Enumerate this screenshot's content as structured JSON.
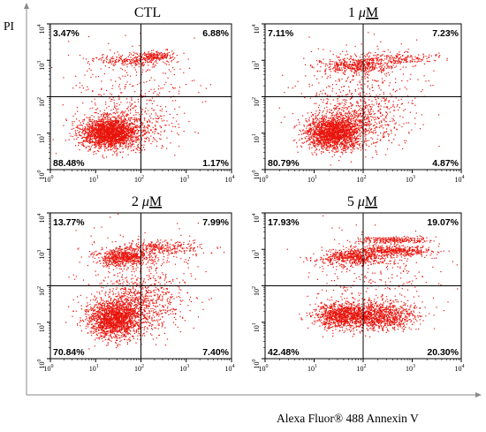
{
  "figure": {
    "y_axis_label": "PI",
    "x_axis_label": "Alexa Fluor® 488 Annexin V",
    "dot_color": "#e8140c"
  },
  "chart_data": [
    {
      "type": "scatter",
      "title": "CTL",
      "x_ticks": [
        "10",
        "10",
        "10",
        "10",
        "10"
      ],
      "x_tick_exp": [
        "0",
        "1",
        "2",
        "3",
        "4"
      ],
      "y_ticks": [
        "10",
        "10",
        "10",
        "10",
        "10"
      ],
      "y_tick_exp": [
        "0",
        "1",
        "2",
        "3",
        "4"
      ],
      "xlim": [
        1,
        10000
      ],
      "ylim": [
        1,
        10000
      ],
      "scale": "log",
      "quadrant_gate": {
        "x": 100,
        "y": 100
      },
      "quadrants": {
        "upper_left": "3.47%",
        "upper_right": "6.88%",
        "lower_left": "88.48%",
        "lower_right": "1.17%"
      },
      "clusters": [
        {
          "center": [
            20,
            10
          ],
          "spread": [
            0.3,
            0.2
          ],
          "count": 2100
        },
        {
          "center": [
            60,
            15
          ],
          "spread": [
            0.45,
            0.35
          ],
          "count": 500
        },
        {
          "center": [
            60,
            1000
          ],
          "spread": [
            0.4,
            0.08
          ],
          "count": 240
        },
        {
          "center": [
            200,
            1300
          ],
          "spread": [
            0.2,
            0.06
          ],
          "count": 160
        },
        {
          "center": [
            60,
            200
          ],
          "spread": [
            0.7,
            0.6
          ],
          "count": 260
        }
      ]
    },
    {
      "type": "scatter",
      "title": "1",
      "title_unit": "uM",
      "x_ticks": [
        "10",
        "10",
        "10",
        "10",
        "10"
      ],
      "x_tick_exp": [
        "0",
        "1",
        "2",
        "3",
        "4"
      ],
      "y_ticks": [
        "10",
        "10",
        "10",
        "10",
        "10"
      ],
      "y_tick_exp": [
        "0",
        "1",
        "2",
        "3",
        "4"
      ],
      "xlim": [
        1,
        10000
      ],
      "ylim": [
        1,
        10000
      ],
      "scale": "log",
      "quadrant_gate": {
        "x": 100,
        "y": 100
      },
      "quadrants": {
        "upper_left": "7.11%",
        "upper_right": "7.23%",
        "lower_left": "80.79%",
        "lower_right": "4.87%"
      },
      "clusters": [
        {
          "center": [
            25,
            10
          ],
          "spread": [
            0.28,
            0.22
          ],
          "count": 1900
        },
        {
          "center": [
            80,
            25
          ],
          "spread": [
            0.45,
            0.4
          ],
          "count": 650
        },
        {
          "center": [
            70,
            700
          ],
          "spread": [
            0.35,
            0.1
          ],
          "count": 420
        },
        {
          "center": [
            400,
            1100
          ],
          "spread": [
            0.45,
            0.08
          ],
          "count": 220
        },
        {
          "center": [
            100,
            200
          ],
          "spread": [
            0.7,
            0.6
          ],
          "count": 300
        }
      ]
    },
    {
      "type": "scatter",
      "title": "2",
      "title_unit": "uM",
      "x_ticks": [
        "10",
        "10",
        "10",
        "10",
        "10"
      ],
      "x_tick_exp": [
        "0",
        "1",
        "2",
        "3",
        "4"
      ],
      "y_ticks": [
        "10",
        "10",
        "10",
        "10",
        "10"
      ],
      "y_tick_exp": [
        "0",
        "1",
        "2",
        "3",
        "4"
      ],
      "xlim": [
        1,
        10000
      ],
      "ylim": [
        1,
        10000
      ],
      "scale": "log",
      "quadrant_gate": {
        "x": 100,
        "y": 100
      },
      "quadrants": {
        "upper_left": "13.77%",
        "upper_right": "7.99%",
        "lower_left": "70.84%",
        "lower_right": "7.40%"
      },
      "clusters": [
        {
          "center": [
            25,
            12
          ],
          "spread": [
            0.3,
            0.25
          ],
          "count": 1700
        },
        {
          "center": [
            90,
            30
          ],
          "spread": [
            0.45,
            0.4
          ],
          "count": 700
        },
        {
          "center": [
            40,
            600
          ],
          "spread": [
            0.3,
            0.12
          ],
          "count": 650
        },
        {
          "center": [
            300,
            1100
          ],
          "spread": [
            0.45,
            0.1
          ],
          "count": 300
        },
        {
          "center": [
            100,
            200
          ],
          "spread": [
            0.7,
            0.6
          ],
          "count": 300
        }
      ]
    },
    {
      "type": "scatter",
      "title": "5",
      "title_unit": "uM",
      "x_ticks": [
        "10",
        "10",
        "10",
        "10",
        "10"
      ],
      "x_tick_exp": [
        "0",
        "1",
        "2",
        "3",
        "4"
      ],
      "y_ticks": [
        "10",
        "10",
        "10",
        "10",
        "10"
      ],
      "y_tick_exp": [
        "0",
        "1",
        "2",
        "3",
        "4"
      ],
      "xlim": [
        1,
        10000
      ],
      "ylim": [
        1,
        10000
      ],
      "scale": "log",
      "quadrant_gate": {
        "x": 100,
        "y": 100
      },
      "quadrants": {
        "upper_left": "17.93%",
        "upper_right": "19.07%",
        "lower_left": "42.48%",
        "lower_right": "20.30%"
      },
      "clusters": [
        {
          "center": [
            40,
            15
          ],
          "spread": [
            0.3,
            0.18
          ],
          "count": 1100
        },
        {
          "center": [
            250,
            15
          ],
          "spread": [
            0.35,
            0.18
          ],
          "count": 900
        },
        {
          "center": [
            60,
            600
          ],
          "spread": [
            0.35,
            0.1
          ],
          "count": 550
        },
        {
          "center": [
            400,
            900
          ],
          "spread": [
            0.4,
            0.07
          ],
          "count": 450
        },
        {
          "center": [
            400,
            1800
          ],
          "spread": [
            0.35,
            0.05
          ],
          "count": 250
        },
        {
          "center": [
            150,
            200
          ],
          "spread": [
            0.7,
            0.6
          ],
          "count": 320
        }
      ]
    }
  ]
}
